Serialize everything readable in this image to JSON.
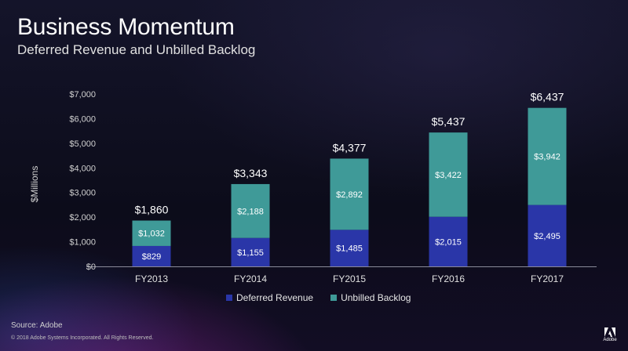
{
  "header": {
    "title": "Business Momentum",
    "subtitle": "Deferred Revenue and Unbilled Backlog"
  },
  "footer": {
    "source": "Source: Adobe",
    "copyright": "© 2018 Adobe Systems Incorporated.  All Rights Reserved.",
    "logo_text": "Adobe"
  },
  "colors": {
    "deferred": "#2a36a8",
    "unbilled": "#3f9a98",
    "axis": "#8a8a9a"
  },
  "chart_data": {
    "type": "bar",
    "stacked": true,
    "categories": [
      "FY2013",
      "FY2014",
      "FY2015",
      "FY2016",
      "FY2017"
    ],
    "series": [
      {
        "name": "Deferred Revenue",
        "values": [
          829,
          1155,
          1485,
          2015,
          2495
        ],
        "labels": [
          "$829",
          "$1,155",
          "$1,485",
          "$2,015",
          "$2,495"
        ]
      },
      {
        "name": "Unbilled Backlog",
        "values": [
          1032,
          2188,
          2892,
          3422,
          3942
        ],
        "labels": [
          "$1,032",
          "$2,188",
          "$2,892",
          "$3,422",
          "$3,942"
        ]
      }
    ],
    "totals": [
      1860,
      3343,
      4377,
      5437,
      6437
    ],
    "total_labels": [
      "$1,860",
      "$3,343",
      "$4,377",
      "$5,437",
      "$6,437"
    ],
    "ylabel": "$Millions",
    "ylim": [
      0,
      7000
    ],
    "yticks": [
      0,
      1000,
      2000,
      3000,
      4000,
      5000,
      6000,
      7000
    ],
    "ytick_labels": [
      "$0",
      "$1,000",
      "$2,000",
      "$3,000",
      "$4,000",
      "$5,000",
      "$6,000",
      "$7,000"
    ],
    "grid": false,
    "legend_position": "bottom"
  }
}
